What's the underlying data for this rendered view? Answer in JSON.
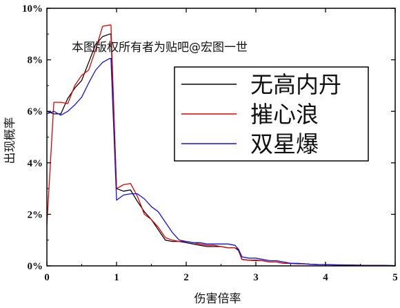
{
  "watermark": "本图版权所有者为贴吧@宏图一世",
  "chart_data": {
    "type": "line",
    "xlabel": "伤害倍率",
    "ylabel": "出现概率",
    "xlim": [
      0,
      5
    ],
    "ylim": [
      0,
      10
    ],
    "xticks": [
      "0",
      "1",
      "2",
      "3",
      "4",
      "5"
    ],
    "yticks": [
      "0%",
      "2%",
      "4%",
      "6%",
      "8%",
      "10%"
    ],
    "legend_position": "top-right",
    "grid": false,
    "series": [
      {
        "name": "无高内丹",
        "color": "#000000",
        "x": [
          0,
          0.1,
          0.2,
          0.3,
          0.4,
          0.5,
          0.6,
          0.7,
          0.8,
          0.9,
          0.92,
          1.0,
          1.1,
          1.2,
          1.3,
          1.4,
          1.5,
          1.6,
          1.7,
          1.8,
          1.9,
          2.0,
          2.1,
          2.2,
          2.3,
          2.4,
          2.5,
          2.6,
          2.7,
          2.75,
          2.8,
          2.9,
          3.0,
          3.1,
          3.2,
          3.3,
          3.4,
          3.5,
          3.6,
          3.7,
          3.8,
          3.9,
          4.0,
          4.2,
          4.4,
          4.6,
          4.8,
          5.0
        ],
        "y": [
          6.0,
          5.9,
          5.9,
          6.5,
          6.9,
          7.2,
          7.9,
          8.6,
          8.9,
          9.0,
          9.0,
          3.0,
          2.9,
          2.95,
          2.5,
          2.1,
          1.8,
          1.4,
          1.0,
          0.95,
          0.95,
          0.9,
          0.85,
          0.8,
          0.75,
          0.75,
          0.75,
          0.7,
          0.7,
          0.6,
          0.25,
          0.22,
          0.22,
          0.2,
          0.15,
          0.15,
          0.1,
          0.1,
          0.08,
          0.08,
          0.06,
          0.05,
          0.05,
          0.03,
          0.03,
          0.02,
          0.02,
          0.01
        ]
      },
      {
        "name": "摧心浪",
        "color": "#e00000",
        "x": [
          0,
          0.1,
          0.2,
          0.3,
          0.4,
          0.5,
          0.6,
          0.7,
          0.8,
          0.9,
          0.92,
          1.0,
          1.1,
          1.2,
          1.3,
          1.4,
          1.5,
          1.6,
          1.7,
          1.8,
          1.9,
          2.0,
          2.1,
          2.2,
          2.3,
          2.4,
          2.5,
          2.6,
          2.7,
          2.75,
          2.8,
          2.9,
          3.0,
          3.1,
          3.2,
          3.3,
          3.4,
          3.5,
          3.6,
          3.7,
          3.8,
          3.9,
          4.0,
          4.2,
          4.4,
          4.6,
          4.8,
          5.0
        ],
        "y": [
          1.6,
          6.35,
          6.35,
          6.3,
          7.0,
          7.4,
          7.6,
          8.4,
          9.3,
          9.35,
          9.35,
          3.0,
          3.15,
          3.2,
          2.7,
          2.0,
          1.8,
          1.5,
          1.1,
          1.0,
          0.95,
          0.95,
          0.9,
          0.85,
          0.8,
          0.8,
          0.75,
          0.7,
          0.7,
          0.65,
          0.25,
          0.22,
          0.2,
          0.2,
          0.15,
          0.15,
          0.1,
          0.1,
          0.08,
          0.08,
          0.06,
          0.05,
          0.05,
          0.03,
          0.03,
          0.02,
          0.02,
          0.01
        ]
      },
      {
        "name": "双星爆",
        "color": "#1010e0",
        "x": [
          0,
          0.1,
          0.2,
          0.3,
          0.4,
          0.5,
          0.6,
          0.7,
          0.8,
          0.9,
          0.92,
          1.0,
          1.1,
          1.2,
          1.3,
          1.4,
          1.5,
          1.6,
          1.7,
          1.8,
          1.9,
          2.0,
          2.1,
          2.2,
          2.3,
          2.4,
          2.5,
          2.6,
          2.7,
          2.75,
          2.8,
          2.9,
          3.0,
          3.1,
          3.2,
          3.3,
          3.4,
          3.5,
          3.6,
          3.7,
          3.8,
          3.9,
          4.0,
          4.2,
          4.4,
          4.6,
          4.8,
          5.0
        ],
        "y": [
          5.9,
          6.0,
          5.85,
          6.0,
          6.25,
          6.55,
          7.1,
          7.6,
          7.9,
          8.05,
          8.05,
          2.55,
          2.75,
          2.8,
          2.8,
          2.6,
          2.3,
          2.1,
          1.7,
          1.3,
          1.0,
          0.95,
          0.9,
          0.9,
          0.85,
          0.85,
          0.85,
          0.85,
          0.8,
          0.65,
          0.35,
          0.3,
          0.3,
          0.25,
          0.2,
          0.2,
          0.15,
          0.1,
          0.1,
          0.08,
          0.06,
          0.05,
          0.05,
          0.04,
          0.03,
          0.02,
          0.02,
          0.01
        ]
      }
    ]
  }
}
